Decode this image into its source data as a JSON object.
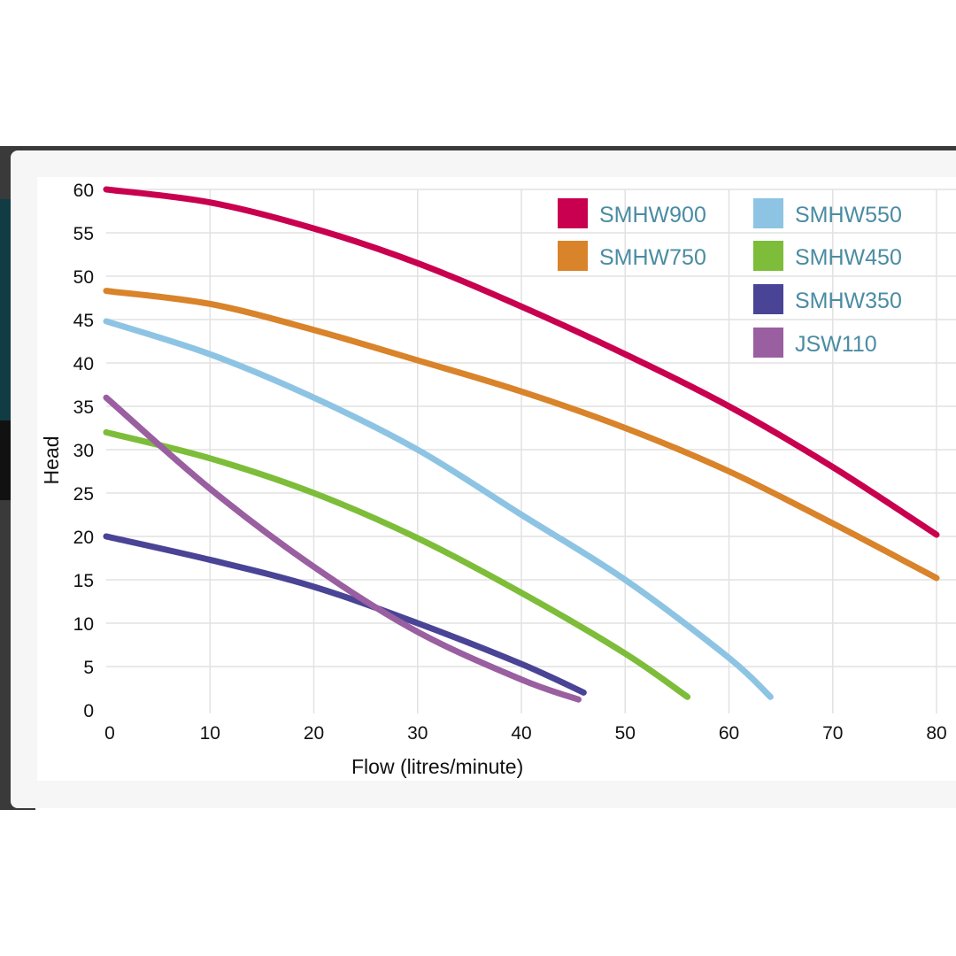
{
  "chart_data": {
    "type": "line",
    "title": "",
    "xlabel": "Flow (litres/minute)",
    "ylabel": "Head",
    "xlim": [
      0,
      80
    ],
    "ylim": [
      0,
      60
    ],
    "xticks": [
      0,
      10,
      20,
      30,
      40,
      50,
      60,
      70,
      80
    ],
    "yticks": [
      0,
      5,
      10,
      15,
      20,
      25,
      30,
      35,
      40,
      45,
      50,
      55,
      60
    ],
    "grid": true,
    "legend_position": "top-right",
    "series": [
      {
        "name": "SMHW900",
        "color": "#c8004f",
        "x": [
          0,
          10,
          20,
          30,
          40,
          50,
          60,
          70,
          80
        ],
        "y": [
          60,
          58.5,
          55.5,
          51.5,
          46.5,
          41,
          35,
          28,
          20.2
        ]
      },
      {
        "name": "SMHW750",
        "color": "#d9832a",
        "x": [
          0,
          10,
          20,
          30,
          40,
          50,
          60,
          70,
          80
        ],
        "y": [
          48.3,
          46.8,
          43.8,
          40.3,
          36.7,
          32.5,
          27.5,
          21.5,
          15.2
        ]
      },
      {
        "name": "SMHW550",
        "color": "#8ec4e3",
        "x": [
          0,
          10,
          20,
          30,
          40,
          50,
          60,
          64
        ],
        "y": [
          44.8,
          41,
          36,
          30,
          22.5,
          15,
          6,
          1.5
        ]
      },
      {
        "name": "SMHW450",
        "color": "#7dbd3a",
        "x": [
          0,
          10,
          20,
          30,
          40,
          50,
          56
        ],
        "y": [
          32,
          29,
          25,
          19.8,
          13.5,
          6.5,
          1.5
        ]
      },
      {
        "name": "SMHW350",
        "color": "#4a4496",
        "x": [
          0,
          10,
          20,
          30,
          40,
          46
        ],
        "y": [
          20,
          17.3,
          14.2,
          10,
          5.3,
          2
        ]
      },
      {
        "name": "JSW110",
        "color": "#9a5fa0",
        "x": [
          0,
          10,
          20,
          30,
          40,
          45.5
        ],
        "y": [
          36,
          25.5,
          16.5,
          9,
          3.5,
          1.2
        ]
      }
    ]
  }
}
